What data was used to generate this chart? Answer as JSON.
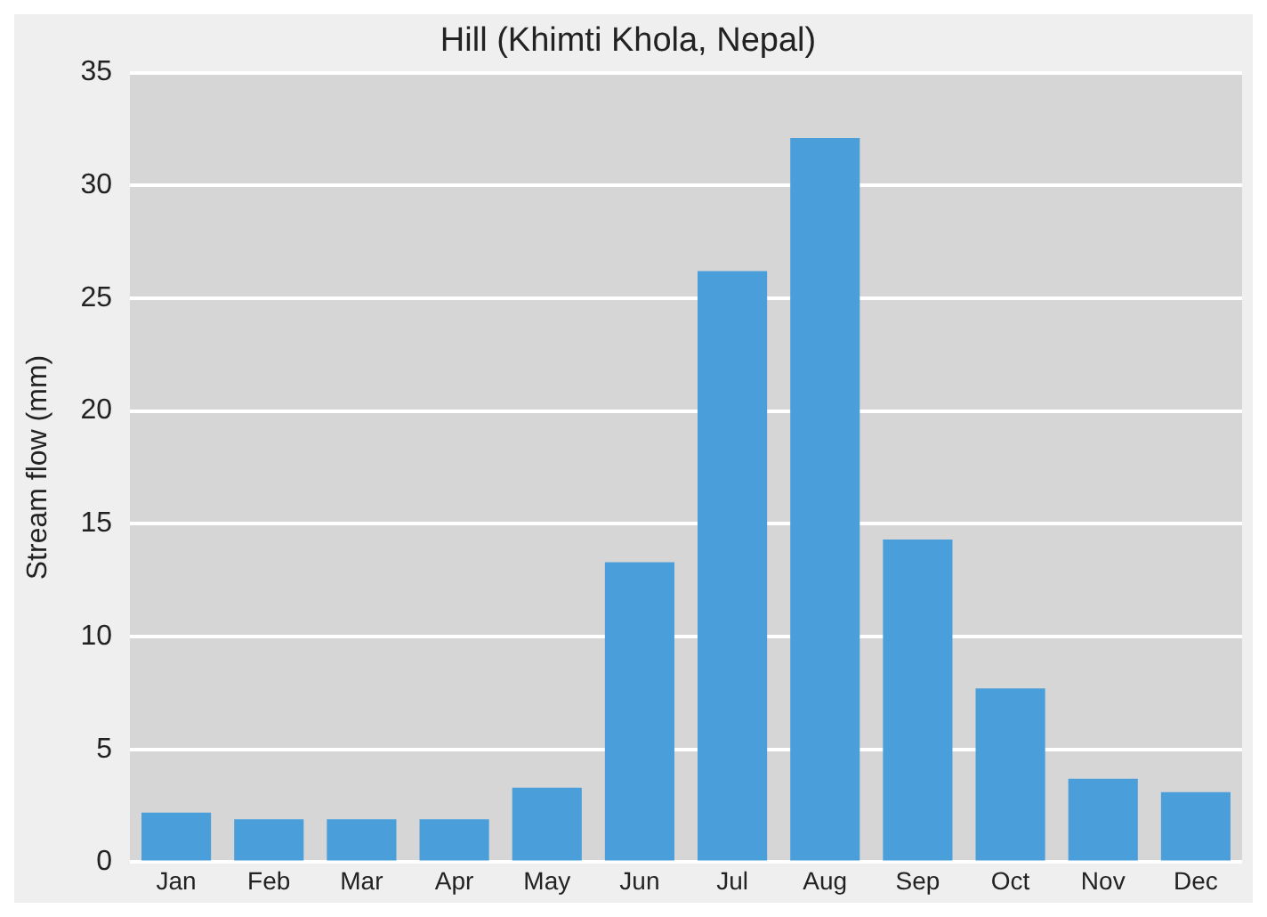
{
  "chart_data": {
    "type": "bar",
    "title": "Hill (Khimti Khola, Nepal)",
    "ylabel": "Stream flow (mm)",
    "categories": [
      "Jan",
      "Feb",
      "Mar",
      "Apr",
      "May",
      "Jun",
      "Jul",
      "Aug",
      "Sep",
      "Oct",
      "Nov",
      "Dec"
    ],
    "values": [
      2.2,
      1.9,
      1.9,
      1.9,
      3.3,
      13.3,
      26.2,
      32.1,
      14.3,
      7.7,
      3.7,
      3.1
    ],
    "color": "#4a9fda",
    "ylim": [
      0,
      35
    ],
    "yticks": [
      0,
      5,
      10,
      15,
      20,
      25,
      30,
      35
    ],
    "grid": "y"
  }
}
